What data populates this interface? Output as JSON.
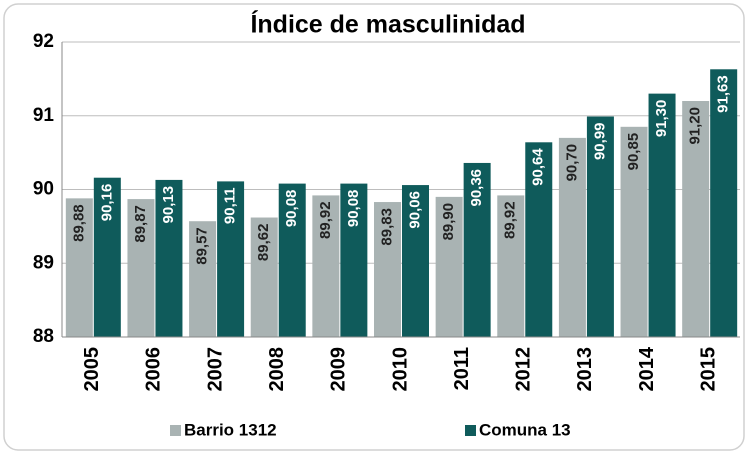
{
  "chart_data": {
    "type": "bar",
    "title": "Índice de masculinidad",
    "categories": [
      "2005",
      "2006",
      "2007",
      "2008",
      "2009",
      "2010",
      "2011",
      "2012",
      "2013",
      "2014",
      "2015"
    ],
    "series": [
      {
        "name": "Barrio 1312",
        "color": "#a9b3b3",
        "values": [
          89.88,
          89.87,
          89.57,
          89.62,
          89.92,
          89.83,
          89.9,
          89.92,
          90.7,
          90.85,
          91.2
        ],
        "value_labels": [
          "89,88",
          "89,87",
          "89,57",
          "89,62",
          "89,92",
          "89,83",
          "89,90",
          "89,92",
          "90,70",
          "90,85",
          "91,20"
        ]
      },
      {
        "name": "Comuna 13",
        "color": "#0f5b5b",
        "values": [
          90.16,
          90.13,
          90.11,
          90.08,
          90.08,
          90.06,
          90.36,
          90.64,
          90.99,
          91.3,
          91.63
        ],
        "value_labels": [
          "90,16",
          "90,13",
          "90,11",
          "90,08",
          "90,08",
          "90,06",
          "90,36",
          "90,64",
          "90,99",
          "91,30",
          "91,63"
        ]
      }
    ],
    "ylim": [
      88,
      92
    ],
    "yticks": [
      88,
      89,
      90,
      91,
      92
    ],
    "grid": true,
    "legend": "bottom"
  }
}
